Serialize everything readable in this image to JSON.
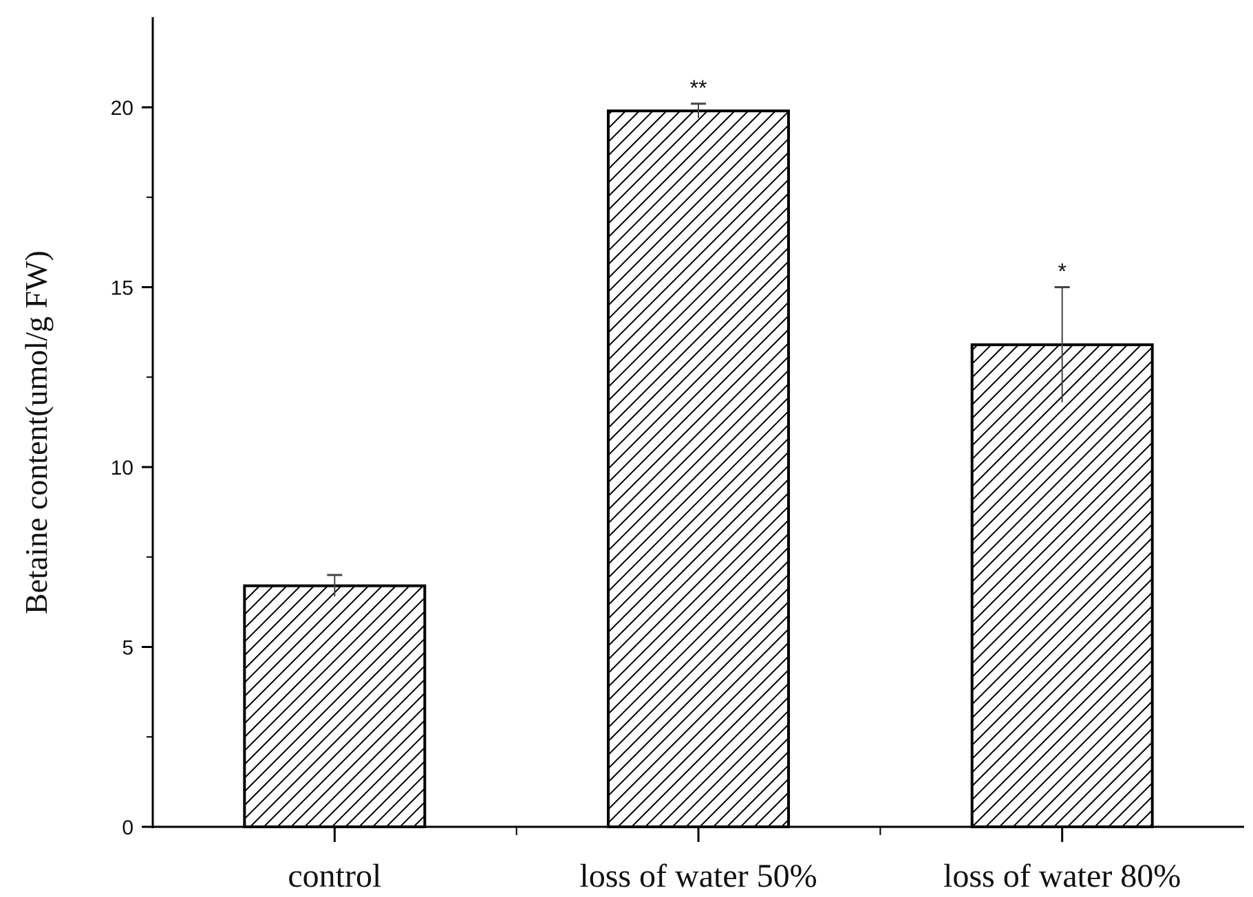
{
  "chart_data": {
    "type": "bar",
    "title": "",
    "xlabel": "",
    "ylabel": "Betaine content(umol/g  FW)",
    "ylim": [
      0,
      22.5
    ],
    "yticks": [
      0,
      5,
      10,
      15,
      20
    ],
    "grid": false,
    "legend": "none",
    "fill_pattern": "diagonal-hatch",
    "bar_color": "#000000",
    "categories": [
      "control",
      "loss of water 50%",
      "loss of water 80%"
    ],
    "series": [
      {
        "values": [
          6.7,
          19.9,
          13.4
        ],
        "error": [
          0.3,
          0.2,
          1.6
        ],
        "significance": [
          "",
          "**",
          "*"
        ]
      }
    ]
  }
}
